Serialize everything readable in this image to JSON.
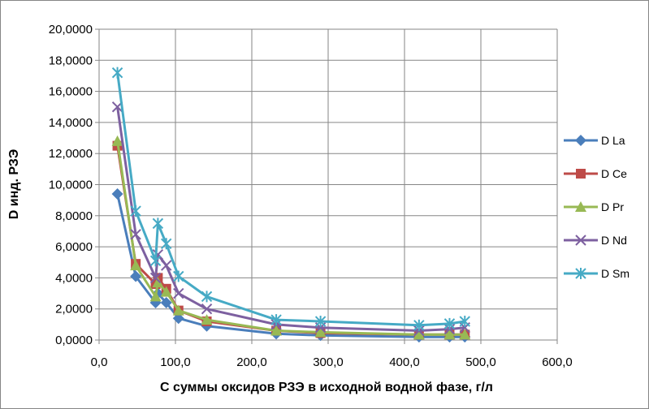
{
  "chart_data": {
    "type": "line",
    "title": "",
    "xlabel": "С суммы оксидов РЗЭ в исходной водной фазе, г/л",
    "ylabel": "D инд. РЗЭ",
    "xlim": [
      0,
      600
    ],
    "ylim": [
      0,
      20
    ],
    "x_ticks": [
      "0,0",
      "100,0",
      "200,0",
      "300,0",
      "400,0",
      "500,0",
      "600,0"
    ],
    "y_ticks": [
      "0,0000",
      "2,0000",
      "4,0000",
      "6,0000",
      "8,0000",
      "10,0000",
      "12,0000",
      "14,0000",
      "16,0000",
      "18,0000",
      "20,0000"
    ],
    "grid": "horizontal and vertical",
    "legend_position": "right",
    "x": [
      24,
      48,
      74,
      77,
      88,
      104,
      141,
      232,
      290,
      419,
      459,
      479
    ],
    "series": [
      {
        "name": "D La",
        "color": "#4a7ebb",
        "marker": "diamond",
        "values": [
          9.4,
          4.1,
          2.4,
          3.0,
          2.4,
          1.4,
          0.9,
          0.4,
          0.3,
          0.2,
          0.2,
          0.2
        ]
      },
      {
        "name": "D Ce",
        "color": "#be4b48",
        "marker": "square",
        "values": [
          12.5,
          4.9,
          3.6,
          4.0,
          3.3,
          1.9,
          1.2,
          0.6,
          0.45,
          0.35,
          0.35,
          0.35
        ]
      },
      {
        "name": "D Pr",
        "color": "#98b954",
        "marker": "triangle",
        "values": [
          12.8,
          4.8,
          2.8,
          3.7,
          3.1,
          1.9,
          1.3,
          0.6,
          0.5,
          0.35,
          0.35,
          0.35
        ]
      },
      {
        "name": "D Nd",
        "color": "#7d60a0",
        "marker": "x",
        "values": [
          15.0,
          6.8,
          4.0,
          5.5,
          4.8,
          3.0,
          2.0,
          1.0,
          0.8,
          0.6,
          0.7,
          0.8
        ]
      },
      {
        "name": "D Sm",
        "color": "#46aac5",
        "marker": "star",
        "values": [
          17.2,
          8.3,
          5.1,
          7.5,
          6.2,
          4.1,
          2.8,
          1.3,
          1.2,
          0.95,
          1.05,
          1.2
        ]
      }
    ]
  }
}
